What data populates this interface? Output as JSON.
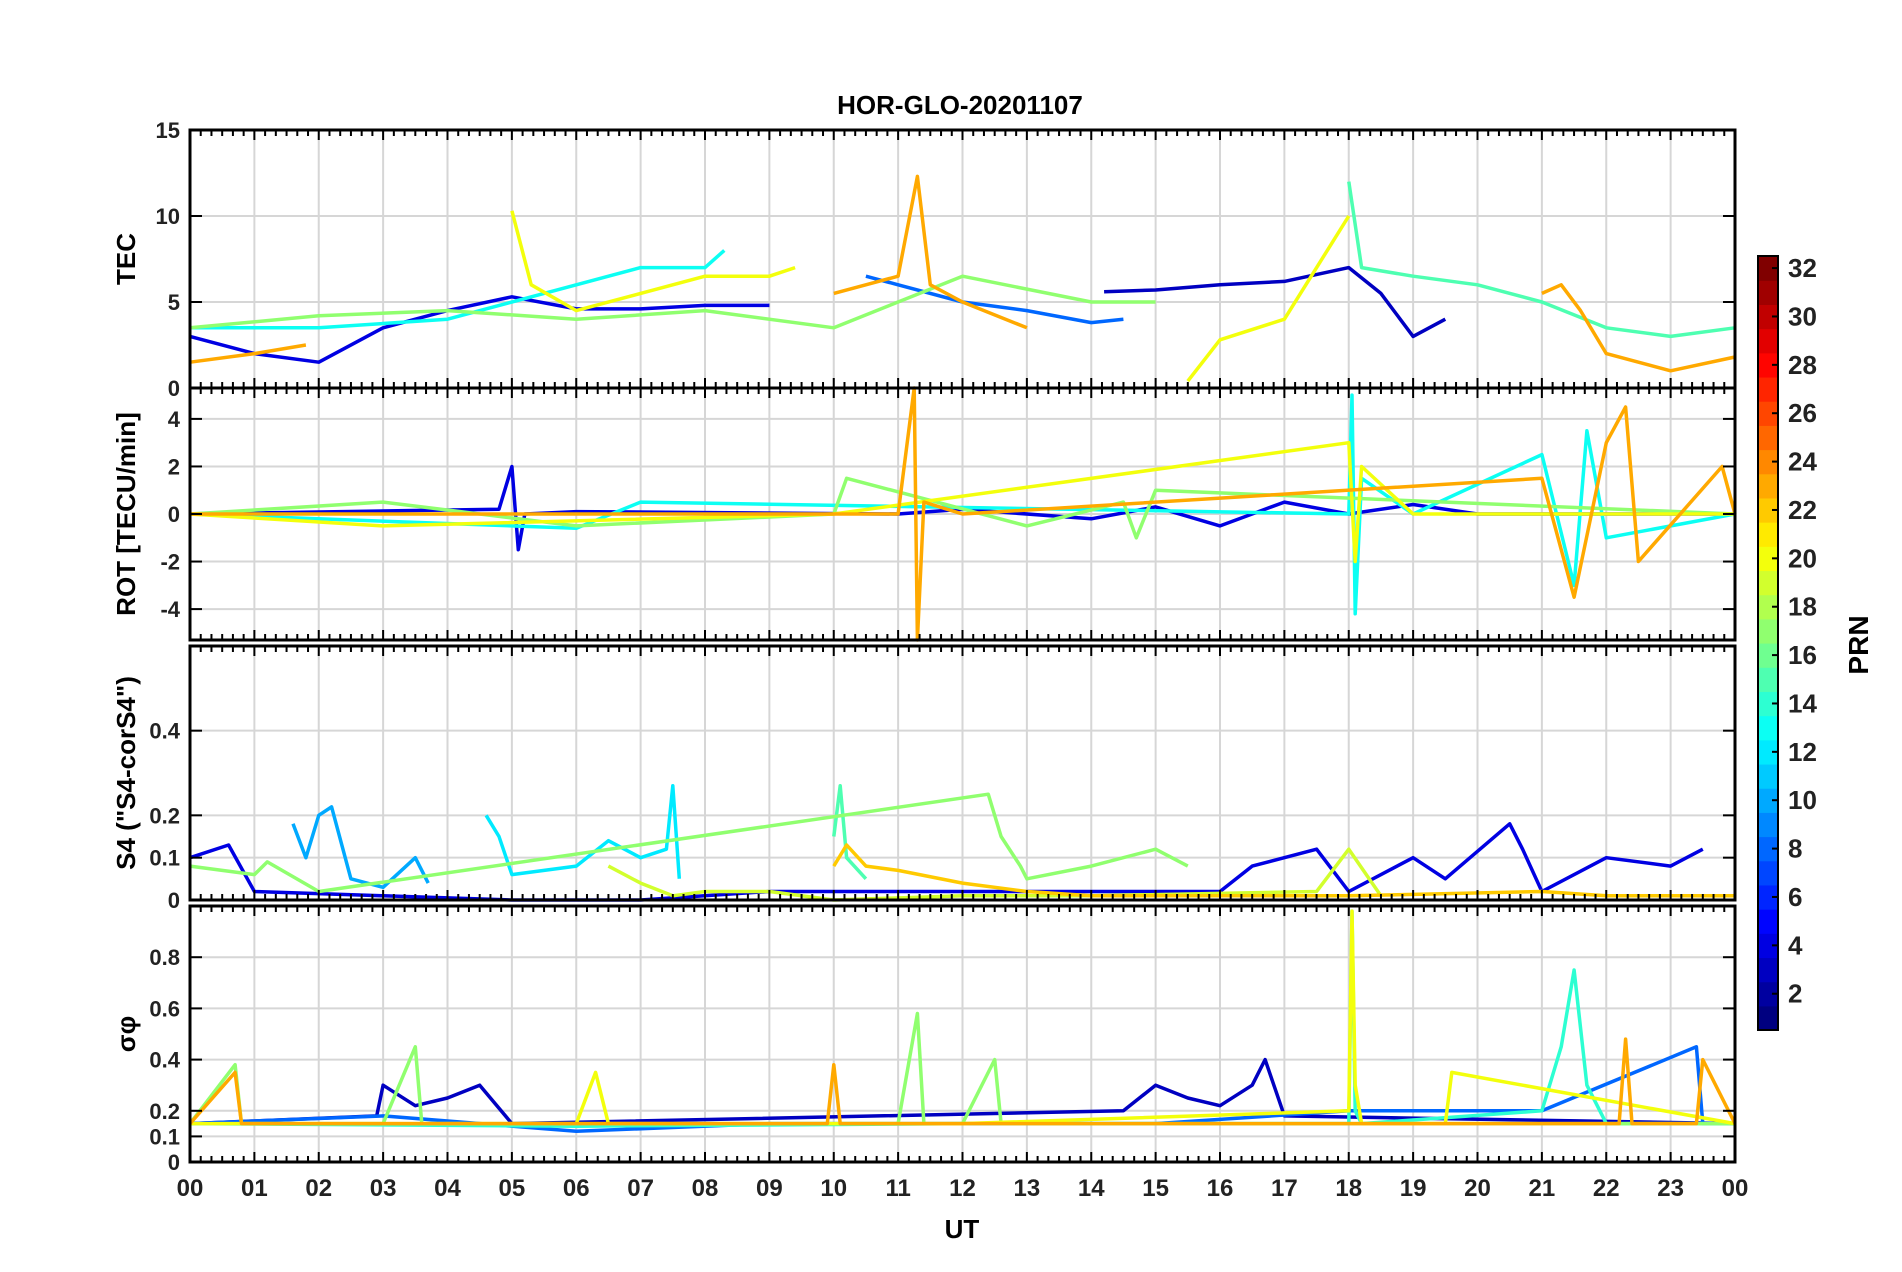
{
  "figure": {
    "title": "HOR-GLO-20201107",
    "x_axis_label": "UT",
    "x_tick_labels": [
      "00",
      "01",
      "02",
      "03",
      "04",
      "05",
      "06",
      "07",
      "08",
      "09",
      "10",
      "11",
      "12",
      "13",
      "14",
      "15",
      "16",
      "17",
      "18",
      "19",
      "20",
      "21",
      "22",
      "23",
      "00"
    ]
  },
  "colorbar": {
    "label": "PRN",
    "range": [
      1,
      32
    ],
    "ticks": [
      2,
      4,
      6,
      8,
      10,
      12,
      14,
      16,
      18,
      20,
      22,
      24,
      26,
      28,
      30,
      32
    ],
    "colormap": "jet"
  },
  "chart_data": [
    {
      "id": "tec",
      "type": "line",
      "ylabel": "TEC",
      "ylim": [
        0,
        15
      ],
      "yticks": [
        0,
        5,
        10,
        15
      ],
      "xlim": [
        0,
        24
      ],
      "grid": true,
      "series": [
        {
          "prn": 4,
          "x": [
            0.0,
            1.0,
            2.0,
            3.0,
            4.0,
            5.0,
            6.0,
            7.0,
            8.0,
            9.0
          ],
          "y": [
            3.0,
            2.0,
            1.5,
            3.5,
            4.5,
            5.3,
            4.6,
            4.6,
            4.8,
            4.8
          ]
        },
        {
          "prn": 3,
          "x": [
            14.2,
            15.0,
            16.0,
            17.0,
            18.0,
            18.5,
            19.0,
            19.5
          ],
          "y": [
            5.6,
            5.7,
            6.0,
            6.2,
            7.0,
            5.5,
            3.0,
            4.0
          ]
        },
        {
          "prn": 8,
          "x": [
            10.5,
            11.0,
            12.0,
            13.0,
            14.0,
            14.5
          ],
          "y": [
            6.5,
            6.0,
            5.0,
            4.5,
            3.8,
            4.0
          ]
        },
        {
          "prn": 13,
          "x": [
            0.0,
            2.0,
            4.0,
            6.0,
            7.0,
            8.0,
            8.3
          ],
          "y": [
            3.5,
            3.5,
            4.0,
            6.0,
            7.0,
            7.0,
            8.0
          ]
        },
        {
          "prn": 15,
          "x": [
            18.0,
            18.2,
            19.0,
            20.0,
            21.0,
            22.0,
            23.0,
            24.0
          ],
          "y": [
            12.0,
            7.0,
            6.5,
            6.0,
            5.0,
            3.5,
            3.0,
            3.5
          ]
        },
        {
          "prn": 17,
          "x": [
            0.0,
            2.0,
            4.0,
            6.0,
            8.0,
            10.0,
            12.0,
            14.0,
            15.0
          ],
          "y": [
            3.5,
            4.2,
            4.5,
            4.0,
            4.5,
            3.5,
            6.5,
            5.0,
            5.0
          ]
        },
        {
          "prn": 20,
          "x": [
            5.0,
            5.3,
            6.0,
            7.0,
            8.0,
            9.0,
            9.4
          ],
          "y": [
            10.3,
            6.0,
            4.5,
            5.5,
            6.5,
            6.5,
            7.0
          ]
        },
        {
          "prn": 20,
          "x": [
            15.5,
            16.0,
            17.0,
            18.0
          ],
          "y": [
            0.4,
            2.8,
            4.0,
            10.0
          ]
        },
        {
          "prn": 23,
          "x": [
            0.0,
            1.0,
            1.8
          ],
          "y": [
            1.5,
            2.0,
            2.5
          ]
        },
        {
          "prn": 23,
          "x": [
            10.0,
            11.0,
            11.3,
            11.5,
            12.0,
            13.0
          ],
          "y": [
            5.5,
            6.5,
            12.3,
            6.0,
            5.0,
            3.5
          ]
        },
        {
          "prn": 23,
          "x": [
            21.0,
            21.3,
            21.6,
            22.0,
            23.0,
            24.0
          ],
          "y": [
            5.5,
            6.0,
            4.5,
            2.0,
            1.0,
            1.8
          ]
        }
      ]
    },
    {
      "id": "rot",
      "type": "line",
      "ylabel": "ROT [TECU/min]",
      "ylim": [
        -5.3,
        5.3
      ],
      "yticks": [
        -4,
        -2,
        0,
        2,
        4
      ],
      "xlim": [
        0,
        24
      ],
      "grid": true,
      "series": [
        {
          "prn": 4,
          "x": [
            0.0,
            4.8,
            5.0,
            5.1,
            5.2,
            6.0,
            11.0,
            12.0,
            14.0,
            15.0,
            16.0,
            17.0,
            18.0,
            19.0,
            20.0,
            24.0
          ],
          "y": [
            0.0,
            0.2,
            2.0,
            -1.5,
            0.0,
            0.1,
            0.0,
            0.2,
            -0.2,
            0.3,
            -0.5,
            0.5,
            0.0,
            0.4,
            0.0,
            0.0
          ]
        },
        {
          "prn": 13,
          "x": [
            0.0,
            6.0,
            7.0,
            18.0,
            18.05,
            18.1,
            18.2,
            19.0,
            21.0,
            21.5,
            21.7,
            22.0,
            24.0
          ],
          "y": [
            0.0,
            -0.6,
            0.5,
            0.0,
            5.0,
            -4.2,
            1.5,
            0.0,
            2.5,
            -3.0,
            3.5,
            -1.0,
            0.0
          ]
        },
        {
          "prn": 17,
          "x": [
            0.0,
            3.0,
            6.0,
            10.0,
            10.2,
            13.0,
            14.5,
            14.7,
            15.0,
            24.0
          ],
          "y": [
            0.0,
            0.5,
            -0.5,
            0.0,
            1.5,
            -0.5,
            0.5,
            -1.0,
            1.0,
            0.0
          ]
        },
        {
          "prn": 20,
          "x": [
            0.0,
            3.0,
            10.0,
            18.0,
            18.1,
            18.2,
            19.0,
            24.0
          ],
          "y": [
            0.0,
            -0.5,
            0.0,
            3.0,
            -2.0,
            2.0,
            0.0,
            0.0
          ]
        },
        {
          "prn": 23,
          "x": [
            0.0,
            11.0,
            11.25,
            11.3,
            11.4,
            12.0,
            21.0,
            21.5,
            22.0,
            22.3,
            22.5,
            23.8,
            24.0
          ],
          "y": [
            0.0,
            0.0,
            5.3,
            -5.3,
            0.5,
            0.0,
            1.5,
            -3.5,
            3.0,
            4.5,
            -2.0,
            2.0,
            0.0
          ]
        }
      ]
    },
    {
      "id": "s4",
      "type": "line",
      "ylabel": "S4 (\"S4-corS4\")",
      "ylim": [
        0,
        0.6
      ],
      "yticks": [
        0,
        0.1,
        0.2,
        0.4
      ],
      "xlim": [
        0,
        24
      ],
      "grid": true,
      "series": [
        {
          "prn": 4,
          "x": [
            0.0,
            0.6,
            1.0,
            3.0,
            5.0,
            7.0,
            9.0,
            16.0,
            16.5,
            17.5,
            18.0,
            19.0,
            19.5,
            20.5,
            20.7,
            21.0,
            22.0,
            23.0,
            23.5
          ],
          "y": [
            0.1,
            0.13,
            0.02,
            0.01,
            0.0,
            0.0,
            0.02,
            0.02,
            0.08,
            0.12,
            0.02,
            0.1,
            0.05,
            0.18,
            0.12,
            0.02,
            0.1,
            0.08,
            0.12
          ]
        },
        {
          "prn": 10,
          "x": [
            1.6,
            1.8,
            2.0,
            2.2,
            2.5,
            3.0,
            3.5,
            3.7
          ],
          "y": [
            0.18,
            0.1,
            0.2,
            0.22,
            0.05,
            0.03,
            0.1,
            0.04
          ]
        },
        {
          "prn": 12,
          "x": [
            4.6,
            4.8,
            5.0,
            6.0,
            6.5,
            7.0,
            7.4,
            7.5,
            7.6
          ],
          "y": [
            0.2,
            0.15,
            0.06,
            0.08,
            0.14,
            0.1,
            0.12,
            0.27,
            0.05
          ]
        },
        {
          "prn": 15,
          "x": [
            10.0,
            10.1,
            10.2,
            10.5
          ],
          "y": [
            0.15,
            0.27,
            0.1,
            0.05
          ]
        },
        {
          "prn": 17,
          "x": [
            0.0,
            1.0,
            1.2,
            2.0,
            12.4,
            12.6,
            12.9,
            13.0,
            14.0,
            15.0,
            15.5
          ],
          "y": [
            0.08,
            0.06,
            0.09,
            0.02,
            0.25,
            0.15,
            0.08,
            0.05,
            0.08,
            0.12,
            0.08
          ]
        },
        {
          "prn": 19,
          "x": [
            6.5,
            7.0,
            7.5,
            8.0,
            9.0,
            10.0,
            12.0,
            14.0,
            17.5,
            18.0,
            18.5
          ],
          "y": [
            0.08,
            0.04,
            0.01,
            0.02,
            0.02,
            0.0,
            0.01,
            0.01,
            0.02,
            0.12,
            0.01
          ]
        },
        {
          "prn": 22,
          "x": [
            10.0,
            10.2,
            10.5,
            11.0,
            12.0,
            13.0,
            14.0,
            18.0,
            21.0,
            22.0,
            24.0
          ],
          "y": [
            0.08,
            0.13,
            0.08,
            0.07,
            0.04,
            0.02,
            0.01,
            0.01,
            0.02,
            0.01,
            0.01
          ]
        }
      ]
    },
    {
      "id": "sigma_phi",
      "type": "line",
      "ylabel": "σφ",
      "ylim": [
        0,
        1.0
      ],
      "yticks": [
        0,
        0.1,
        0.2,
        0.4,
        0.6,
        0.8
      ],
      "xlim": [
        0,
        24
      ],
      "grid": true,
      "series": [
        {
          "prn": 3,
          "x": [
            0.0,
            2.9,
            3.0,
            3.5,
            4.0,
            4.5,
            5.0,
            14.5,
            15.0,
            15.5,
            16.0,
            16.5,
            16.7,
            17.0,
            24.0
          ],
          "y": [
            0.15,
            0.18,
            0.3,
            0.22,
            0.25,
            0.3,
            0.15,
            0.2,
            0.3,
            0.25,
            0.22,
            0.3,
            0.4,
            0.18,
            0.15
          ]
        },
        {
          "prn": 8,
          "x": [
            0.0,
            3.0,
            6.0,
            9.0,
            12.0,
            15.0,
            18.0,
            21.0,
            23.4,
            23.5,
            24.0
          ],
          "y": [
            0.15,
            0.18,
            0.12,
            0.15,
            0.15,
            0.15,
            0.2,
            0.2,
            0.45,
            0.15,
            0.15
          ]
        },
        {
          "prn": 14,
          "x": [
            0.0,
            6.0,
            12.0,
            18.0,
            18.05,
            18.1,
            18.2,
            21.0,
            21.3,
            21.5,
            21.7,
            22.0,
            24.0
          ],
          "y": [
            0.15,
            0.14,
            0.15,
            0.15,
            0.98,
            0.2,
            0.15,
            0.2,
            0.45,
            0.75,
            0.3,
            0.15,
            0.15
          ]
        },
        {
          "prn": 17,
          "x": [
            0.0,
            0.7,
            0.8,
            3.0,
            3.5,
            3.6,
            6.0,
            11.0,
            11.3,
            11.4,
            12.0,
            12.5,
            12.6,
            13.0,
            24.0
          ],
          "y": [
            0.15,
            0.38,
            0.15,
            0.15,
            0.45,
            0.15,
            0.15,
            0.15,
            0.58,
            0.15,
            0.15,
            0.4,
            0.15,
            0.15,
            0.15
          ]
        },
        {
          "prn": 20,
          "x": [
            0.0,
            6.0,
            6.3,
            6.5,
            8.0,
            12.0,
            18.0,
            18.05,
            18.1,
            18.2,
            19.5,
            19.6,
            24.0
          ],
          "y": [
            0.15,
            0.15,
            0.35,
            0.15,
            0.15,
            0.15,
            0.2,
            0.98,
            0.3,
            0.15,
            0.15,
            0.35,
            0.15
          ]
        },
        {
          "prn": 23,
          "x": [
            0.0,
            0.7,
            0.8,
            3.0,
            6.0,
            9.9,
            10.0,
            10.1,
            12.0,
            18.0,
            21.0,
            22.2,
            22.3,
            22.4,
            23.4,
            23.5,
            24.0
          ],
          "y": [
            0.15,
            0.35,
            0.15,
            0.15,
            0.15,
            0.15,
            0.38,
            0.15,
            0.15,
            0.15,
            0.15,
            0.15,
            0.48,
            0.15,
            0.15,
            0.4,
            0.15
          ]
        }
      ]
    }
  ]
}
